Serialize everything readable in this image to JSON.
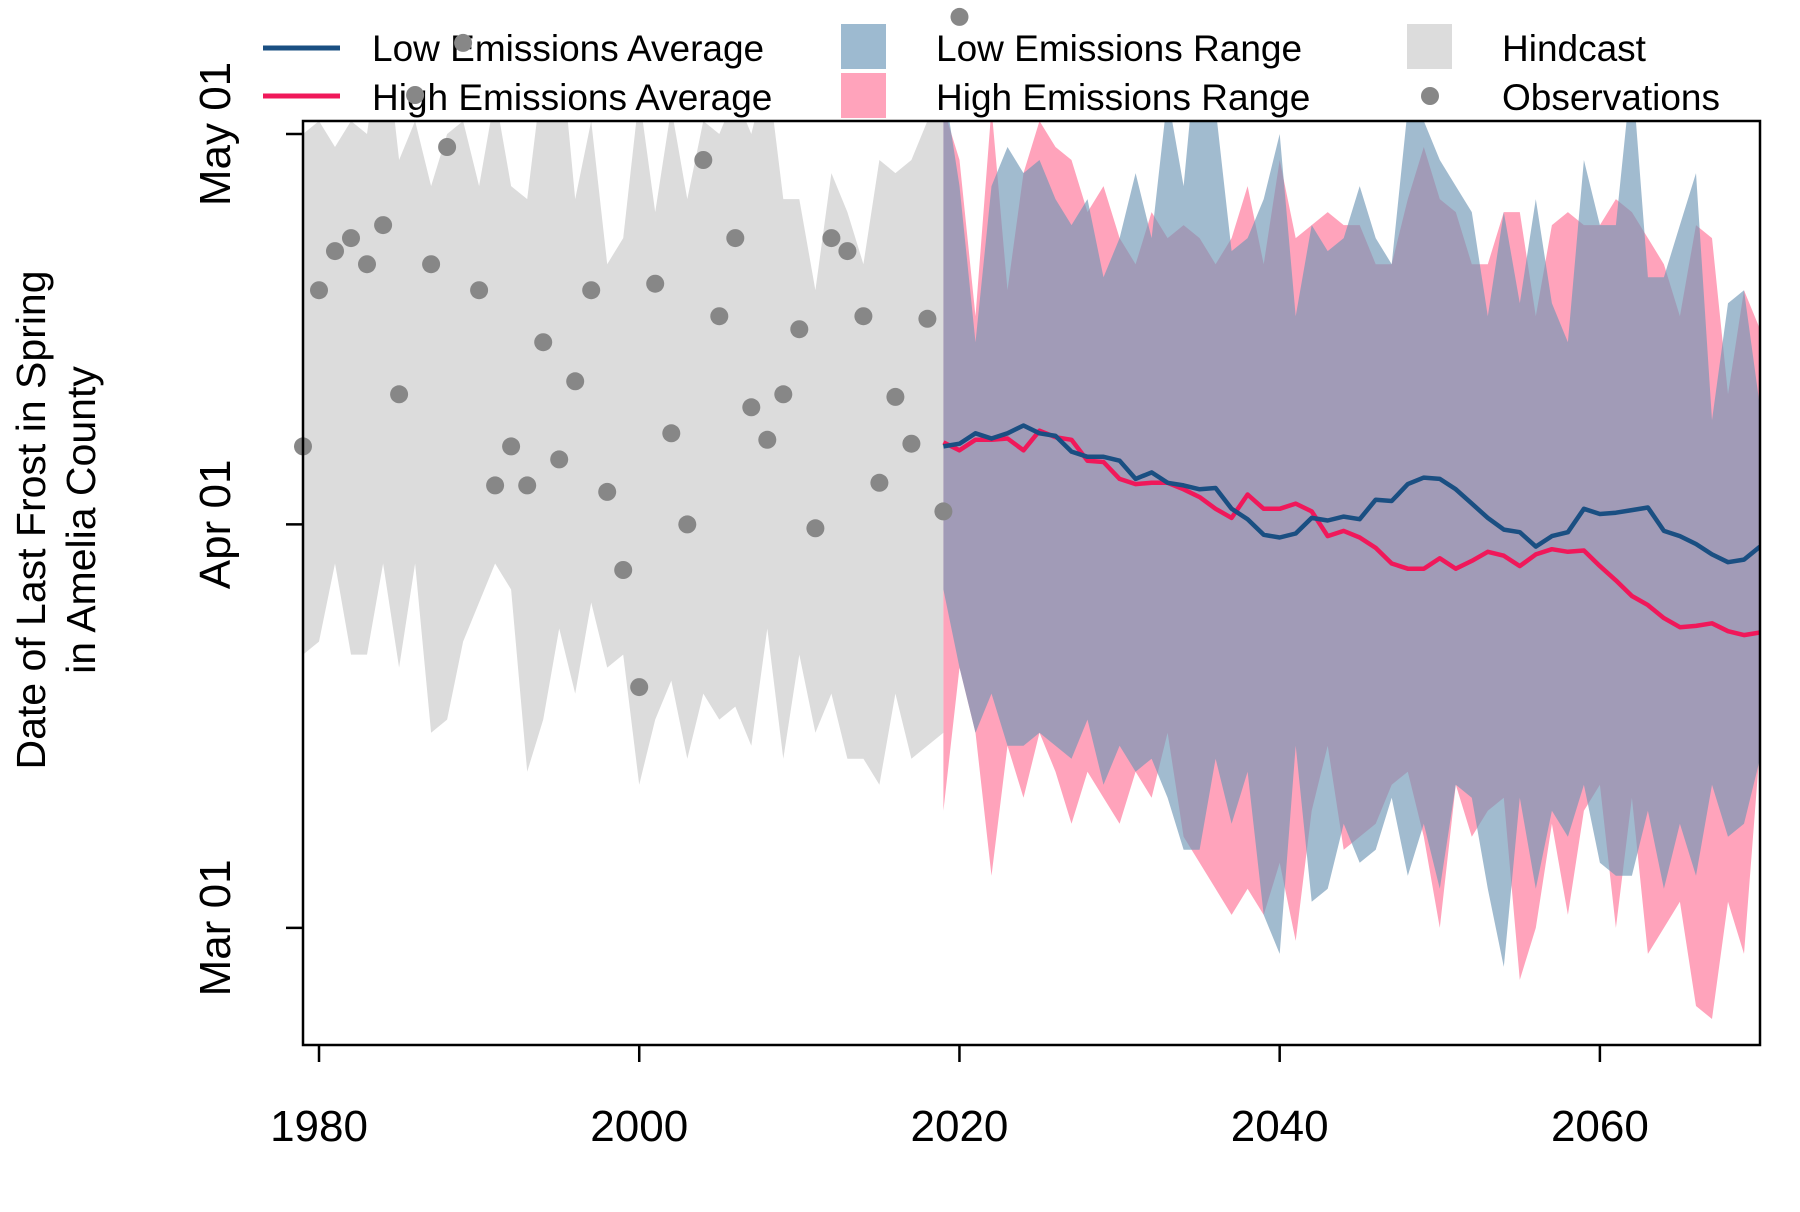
{
  "chart_data": {
    "type": "area",
    "ylabel_line1": "Date of Last Frost in Spring",
    "ylabel_line2": "in Amelia County",
    "xlim": [
      1979,
      2070
    ],
    "ylim": [
      -40,
      31
    ],
    "y_unit": "days relative to Apr 01",
    "x_ticks": [
      {
        "value": 1980,
        "label": "1980"
      },
      {
        "value": 2000,
        "label": "2000"
      },
      {
        "value": 2020,
        "label": "2020"
      },
      {
        "value": 2040,
        "label": "2040"
      },
      {
        "value": 2060,
        "label": "2060"
      }
    ],
    "y_ticks": [
      {
        "value": -31,
        "label": "Mar 01"
      },
      {
        "value": 0,
        "label": "Apr 01"
      },
      {
        "value": 30,
        "label": "May 01"
      }
    ],
    "legend": {
      "placement": "top",
      "items": [
        {
          "name": "Low Emissions Average",
          "kind": "line",
          "color": "#1a4f82"
        },
        {
          "name": "High Emissions Average",
          "kind": "line",
          "color": "#f0185a"
        },
        {
          "name": "Low Emissions Range",
          "kind": "box",
          "color": "#9dbad0"
        },
        {
          "name": "High Emissions Range",
          "kind": "box",
          "color": "#ffa3bb"
        },
        {
          "name": "Hindcast",
          "kind": "box",
          "color": "#dcdcdc"
        },
        {
          "name": "Observations",
          "kind": "point",
          "color": "#878787"
        }
      ]
    },
    "hindcast": {
      "x": [
        1979,
        1980,
        1981,
        1982,
        1983,
        1984,
        1985,
        1986,
        1987,
        1988,
        1989,
        1990,
        1991,
        1992,
        1993,
        1994,
        1995,
        1996,
        1997,
        1998,
        1999,
        2000,
        2001,
        2002,
        2003,
        2004,
        2005,
        2006,
        2007,
        2008,
        2009,
        2010,
        2011,
        2012,
        2013,
        2014,
        2015,
        2016,
        2017,
        2018,
        2019
      ],
      "upper": [
        30,
        31,
        29,
        31,
        30,
        39,
        28,
        31,
        26,
        30,
        31,
        26,
        33,
        26,
        25,
        35,
        38,
        25,
        31,
        20,
        22,
        33,
        24,
        32,
        25,
        31,
        30,
        33,
        30,
        35,
        25,
        25,
        18,
        27,
        24,
        20,
        28,
        27,
        28,
        31,
        32
      ],
      "lower": [
        -10,
        -9,
        -3,
        -10,
        -10,
        -3,
        -11,
        -3,
        -16,
        -15,
        -9,
        -6,
        -3,
        -5,
        -19,
        -15,
        -8,
        -13,
        -6,
        -11,
        -10,
        -20,
        -15,
        -12,
        -18,
        -13,
        -15,
        -14,
        -17,
        -8,
        -18,
        -10,
        -16,
        -13,
        -18,
        -18,
        -20,
        -13,
        -18,
        -17,
        -16
      ]
    },
    "low_range": {
      "x": [
        2019,
        2020,
        2021,
        2022,
        2023,
        2024,
        2025,
        2026,
        2027,
        2028,
        2029,
        2030,
        2031,
        2032,
        2033,
        2034,
        2035,
        2036,
        2037,
        2038,
        2039,
        2040,
        2041,
        2042,
        2043,
        2044,
        2045,
        2046,
        2047,
        2048,
        2049,
        2050,
        2051,
        2052,
        2053,
        2054,
        2055,
        2056,
        2057,
        2058,
        2059,
        2060,
        2061,
        2062,
        2063,
        2064,
        2065,
        2066,
        2067,
        2068,
        2069,
        2070
      ],
      "upper": [
        34,
        26,
        14,
        26,
        29,
        27,
        28,
        25,
        23,
        25,
        19,
        22,
        27,
        22,
        33,
        26,
        39,
        32,
        21,
        22,
        25,
        30,
        16,
        23,
        21,
        22,
        26,
        22,
        20,
        32,
        31,
        28,
        26,
        24,
        16,
        24,
        17,
        25,
        17,
        14,
        28,
        23,
        23,
        35,
        19,
        19,
        23,
        27,
        8,
        17,
        18,
        9
      ],
      "lower": [
        -5,
        -11,
        -16,
        -13,
        -17,
        -17,
        -16,
        -17,
        -18,
        -15,
        -20,
        -17,
        -19,
        -18,
        -21,
        -25,
        -25,
        -18,
        -23,
        -19,
        -30,
        -33,
        -17,
        -29,
        -28,
        -23,
        -26,
        -25,
        -21,
        -27,
        -23,
        -28,
        -20,
        -21,
        -28,
        -34,
        -21,
        -28,
        -22,
        -24,
        -20,
        -26,
        -27,
        -27,
        -22,
        -28,
        -23,
        -27,
        -20,
        -24,
        -23,
        -18
      ]
    },
    "high_range": {
      "x": [
        2019,
        2020,
        2021,
        2022,
        2023,
        2024,
        2025,
        2026,
        2027,
        2028,
        2029,
        2030,
        2031,
        2032,
        2033,
        2034,
        2035,
        2036,
        2037,
        2038,
        2039,
        2040,
        2041,
        2042,
        2043,
        2044,
        2045,
        2046,
        2047,
        2048,
        2049,
        2050,
        2051,
        2052,
        2053,
        2054,
        2055,
        2056,
        2057,
        2058,
        2059,
        2060,
        2061,
        2062,
        2063,
        2064,
        2065,
        2066,
        2067,
        2068,
        2069,
        2070
      ],
      "upper": [
        32,
        28,
        16,
        32,
        18,
        27,
        31,
        29,
        28,
        24,
        26,
        22,
        20,
        24,
        22,
        23,
        22,
        20,
        22,
        26,
        20,
        28,
        22,
        23,
        24,
        23,
        23,
        20,
        20,
        25,
        29,
        25,
        24,
        20,
        20,
        24,
        24,
        16,
        23,
        24,
        23,
        23,
        25,
        24,
        22,
        20,
        16,
        23,
        22,
        10,
        18,
        15
      ],
      "lower": [
        -22,
        -11,
        -16,
        -27,
        -17,
        -21,
        -16,
        -19,
        -23,
        -19,
        -21,
        -23,
        -19,
        -21,
        -16,
        -24,
        -26,
        -28,
        -30,
        -28,
        -30,
        -26,
        -32,
        -22,
        -17,
        -25,
        -24,
        -23,
        -20,
        -19,
        -24,
        -31,
        -20,
        -24,
        -22,
        -21,
        -35,
        -31,
        -23,
        -30,
        -22,
        -20,
        -31,
        -21,
        -33,
        -31,
        -29,
        -37,
        -38,
        -29,
        -33,
        -17
      ]
    },
    "low_avg": {
      "x": [
        2019,
        2020,
        2021,
        2022,
        2023,
        2024,
        2025,
        2026,
        2027,
        2028,
        2029,
        2030,
        2031,
        2032,
        2033,
        2034,
        2035,
        2036,
        2037,
        2038,
        2039,
        2040,
        2041,
        2042,
        2043,
        2044,
        2045,
        2046,
        2047,
        2048,
        2049,
        2050,
        2051,
        2052,
        2053,
        2054,
        2055,
        2056,
        2057,
        2058,
        2059,
        2060,
        2061,
        2062,
        2063,
        2064,
        2065,
        2066,
        2067,
        2068,
        2069,
        2070
      ],
      "values": [
        6,
        6.2,
        7,
        6.6,
        7,
        7.6,
        7,
        6.8,
        5.6,
        5.2,
        5.2,
        4.9,
        3.5,
        4,
        3.2,
        3,
        2.7,
        2.8,
        1.2,
        0.4,
        -0.8,
        -1,
        -0.7,
        0.5,
        0.3,
        0.6,
        0.4,
        1.9,
        1.8,
        3.1,
        3.6,
        3.5,
        2.7,
        1.6,
        0.5,
        -0.4,
        -0.6,
        -1.7,
        -0.9,
        -0.6,
        1.2,
        0.8,
        0.9,
        1.1,
        1.3,
        -0.5,
        -0.9,
        -1.5,
        -2.3,
        -2.9,
        -2.7,
        -1.7
      ]
    },
    "high_avg": {
      "x": [
        2019,
        2020,
        2021,
        2022,
        2023,
        2024,
        2025,
        2026,
        2027,
        2028,
        2029,
        2030,
        2031,
        2032,
        2033,
        2034,
        2035,
        2036,
        2037,
        2038,
        2039,
        2040,
        2041,
        2042,
        2043,
        2044,
        2045,
        2046,
        2047,
        2048,
        2049,
        2050,
        2051,
        2052,
        2053,
        2054,
        2055,
        2056,
        2057,
        2058,
        2059,
        2060,
        2061,
        2062,
        2063,
        2064,
        2065,
        2066,
        2067,
        2068,
        2069,
        2070
      ],
      "values": [
        6.3,
        5.7,
        6.5,
        6.5,
        6.6,
        5.7,
        7.2,
        6.7,
        6.5,
        4.9,
        4.8,
        3.5,
        3.1,
        3.2,
        3.2,
        2.7,
        2.1,
        1.2,
        0.5,
        2.3,
        1.2,
        1.2,
        1.6,
        1,
        -0.9,
        -0.5,
        -1,
        -1.8,
        -3,
        -3.4,
        -3.4,
        -2.6,
        -3.4,
        -2.8,
        -2.1,
        -2.4,
        -3.2,
        -2.3,
        -1.9,
        -2.1,
        -2,
        -3.2,
        -4.3,
        -5.5,
        -6.2,
        -7.2,
        -7.9,
        -7.8,
        -7.6,
        -8.2,
        -8.5,
        -8.3
      ]
    },
    "observations": {
      "x": [
        1979,
        1980,
        1981,
        1982,
        1983,
        1984,
        1985,
        1986,
        1987,
        1988,
        1989,
        1990,
        1991,
        1992,
        1993,
        1994,
        1995,
        1996,
        1997,
        1998,
        1999,
        2000,
        2001,
        2002,
        2003,
        2004,
        2005,
        2006,
        2007,
        2008,
        2009,
        2010,
        2011,
        2012,
        2013,
        2014,
        2015,
        2016,
        2017,
        2018,
        2019,
        2020
      ],
      "y": [
        6,
        18,
        21,
        22,
        20,
        23,
        10,
        33,
        20,
        29,
        37,
        18,
        3,
        6,
        3,
        14,
        5,
        11,
        18,
        2.5,
        -3.5,
        -12.5,
        18.5,
        7,
        0,
        28,
        16,
        22,
        9,
        6.5,
        10,
        15,
        -0.3,
        22,
        21,
        16,
        3.2,
        9.8,
        6.2,
        15.8,
        1,
        39
      ]
    }
  }
}
